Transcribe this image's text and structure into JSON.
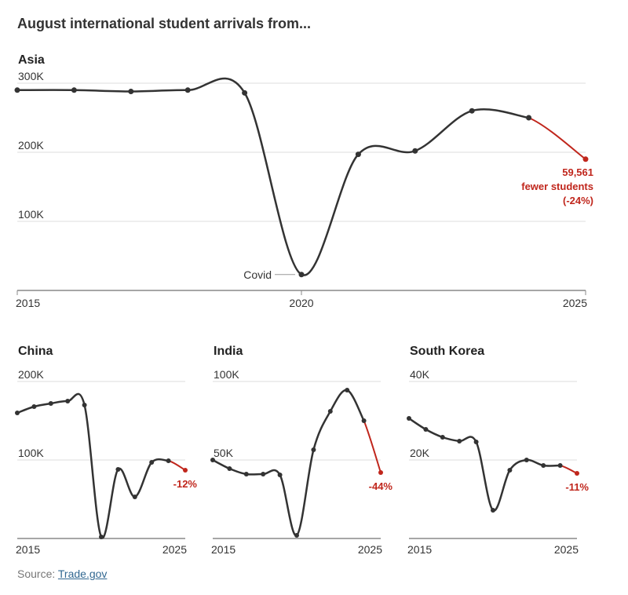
{
  "title": "August international student arrivals from...",
  "source": {
    "label": "Source:",
    "link_text": "Trade.gov"
  },
  "colors": {
    "line": "#333333",
    "highlight": "#c0261c",
    "grid": "#dddddd",
    "axis": "#888888"
  },
  "chart_data": [
    {
      "type": "line",
      "title": "Asia",
      "x": [
        2015,
        2016,
        2017,
        2018,
        2019,
        2020,
        2021,
        2022,
        2023,
        2024,
        2025
      ],
      "values": [
        290000,
        290000,
        288000,
        290000,
        286000,
        23000,
        197000,
        202000,
        260000,
        250000,
        190000
      ],
      "ylim": [
        0,
        300000
      ],
      "yticks": [
        100000,
        200000,
        300000
      ],
      "ytick_labels": [
        "100K",
        "200K",
        "300K"
      ],
      "xticks": [
        2015,
        2020,
        2025
      ],
      "xtick_labels": [
        "2015",
        "2020",
        "2025"
      ],
      "annotations": [
        {
          "x": 2020,
          "text": "Covid"
        },
        {
          "x": 2025,
          "lines": [
            "59,561",
            "fewer students",
            "(-24%)"
          ]
        }
      ]
    },
    {
      "type": "line",
      "title": "China",
      "x": [
        2015,
        2016,
        2017,
        2018,
        2019,
        2020,
        2021,
        2022,
        2023,
        2024,
        2025
      ],
      "values": [
        160000,
        168000,
        172000,
        175000,
        170000,
        2000,
        88000,
        53000,
        97000,
        99000,
        87000
      ],
      "ylim": [
        0,
        200000
      ],
      "yticks": [
        100000,
        200000
      ],
      "ytick_labels": [
        "100K",
        "200K"
      ],
      "xtick_labels": [
        "2015",
        "2025"
      ],
      "change_label": "-12%"
    },
    {
      "type": "line",
      "title": "India",
      "x": [
        2015,
        2016,
        2017,
        2018,
        2019,
        2020,
        2021,
        2022,
        2023,
        2024,
        2025
      ],
      "values": [
        50000,
        44500,
        41000,
        41000,
        40500,
        2000,
        56500,
        81000,
        94500,
        75000,
        42000
      ],
      "ylim": [
        0,
        100000
      ],
      "yticks": [
        50000,
        100000
      ],
      "ytick_labels": [
        "50K",
        "100K"
      ],
      "xtick_labels": [
        "2015",
        "2025"
      ],
      "change_label": "-44%"
    },
    {
      "type": "line",
      "title": "South Korea",
      "x": [
        2015,
        2016,
        2017,
        2018,
        2019,
        2020,
        2021,
        2022,
        2023,
        2024,
        2025
      ],
      "values": [
        30600,
        27800,
        25800,
        24800,
        24600,
        7200,
        17400,
        20000,
        18600,
        18600,
        16600
      ],
      "ylim": [
        0,
        40000
      ],
      "yticks": [
        20000,
        40000
      ],
      "ytick_labels": [
        "20K",
        "40K"
      ],
      "xtick_labels": [
        "2015",
        "2025"
      ],
      "change_label": "-11%"
    }
  ]
}
